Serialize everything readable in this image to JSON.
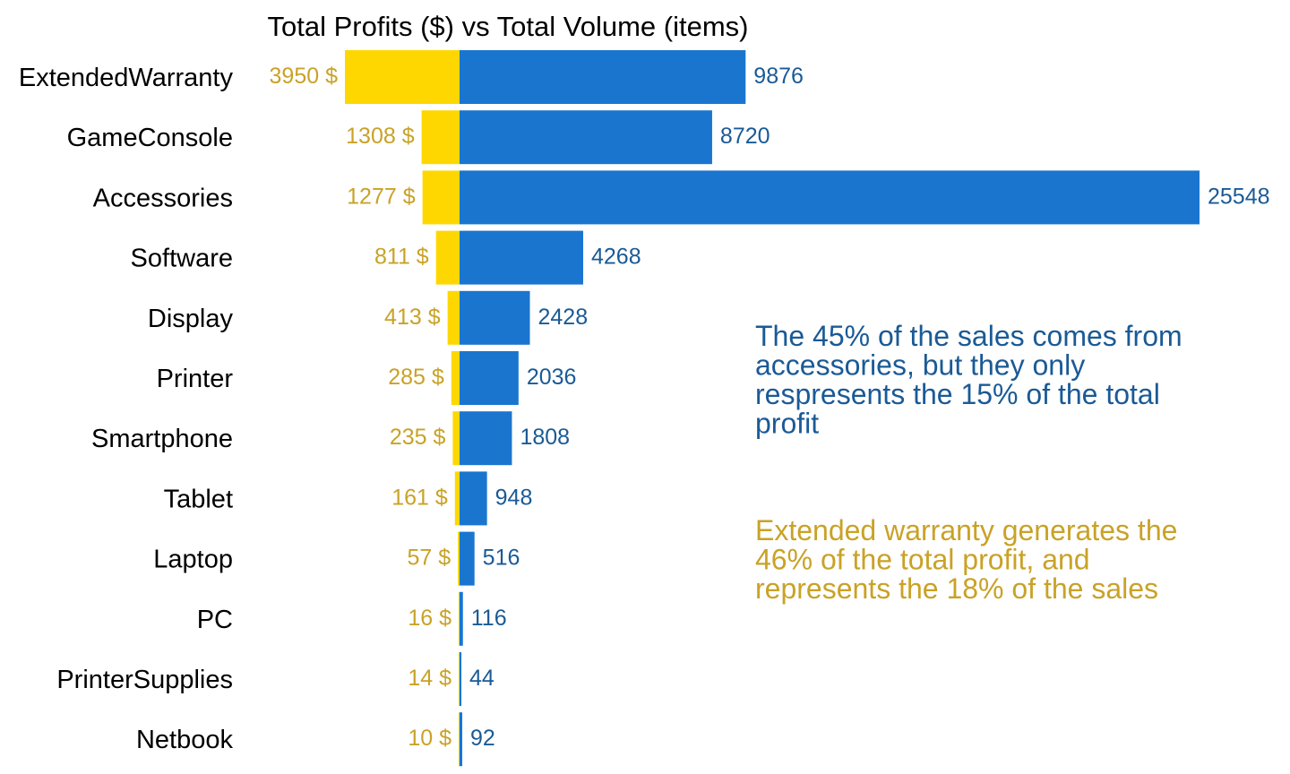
{
  "chart_data": {
    "type": "bar",
    "orientation": "horizontal-diverging",
    "title": "Total Profits ($) vs Total Volume (items)",
    "categories": [
      "ExtendedWarranty",
      "GameConsole",
      "Accessories",
      "Software",
      "Display",
      "Printer",
      "Smartphone",
      "Tablet",
      "Laptop",
      "PC",
      "PrinterSupplies",
      "Netbook"
    ],
    "series": [
      {
        "name": "Total Profits ($)",
        "direction": "left",
        "color": "#FFD700",
        "label_color": "#C9A227",
        "label_suffix": " $",
        "values": [
          3950,
          1308,
          1277,
          811,
          413,
          285,
          235,
          161,
          57,
          16,
          14,
          10
        ]
      },
      {
        "name": "Total Volume (items)",
        "direction": "right",
        "color": "#1A75CF",
        "label_color": "#1A5A96",
        "label_suffix": "",
        "values": [
          9876,
          8720,
          25548,
          4268,
          2428,
          2036,
          1808,
          948,
          516,
          116,
          44,
          92
        ]
      }
    ],
    "annotations": [
      {
        "color": "#1A5A96",
        "lines": [
          "The 45% of the sales comes from",
          "accessories, but they only",
          "respresents the 15% of the total",
          "profit"
        ]
      },
      {
        "color": "#C9A227",
        "lines": [
          "Extended warranty generates the",
          "46% of the total profit, and",
          "represents the 18% of the sales"
        ]
      }
    ],
    "grid": false,
    "legend": "none"
  }
}
